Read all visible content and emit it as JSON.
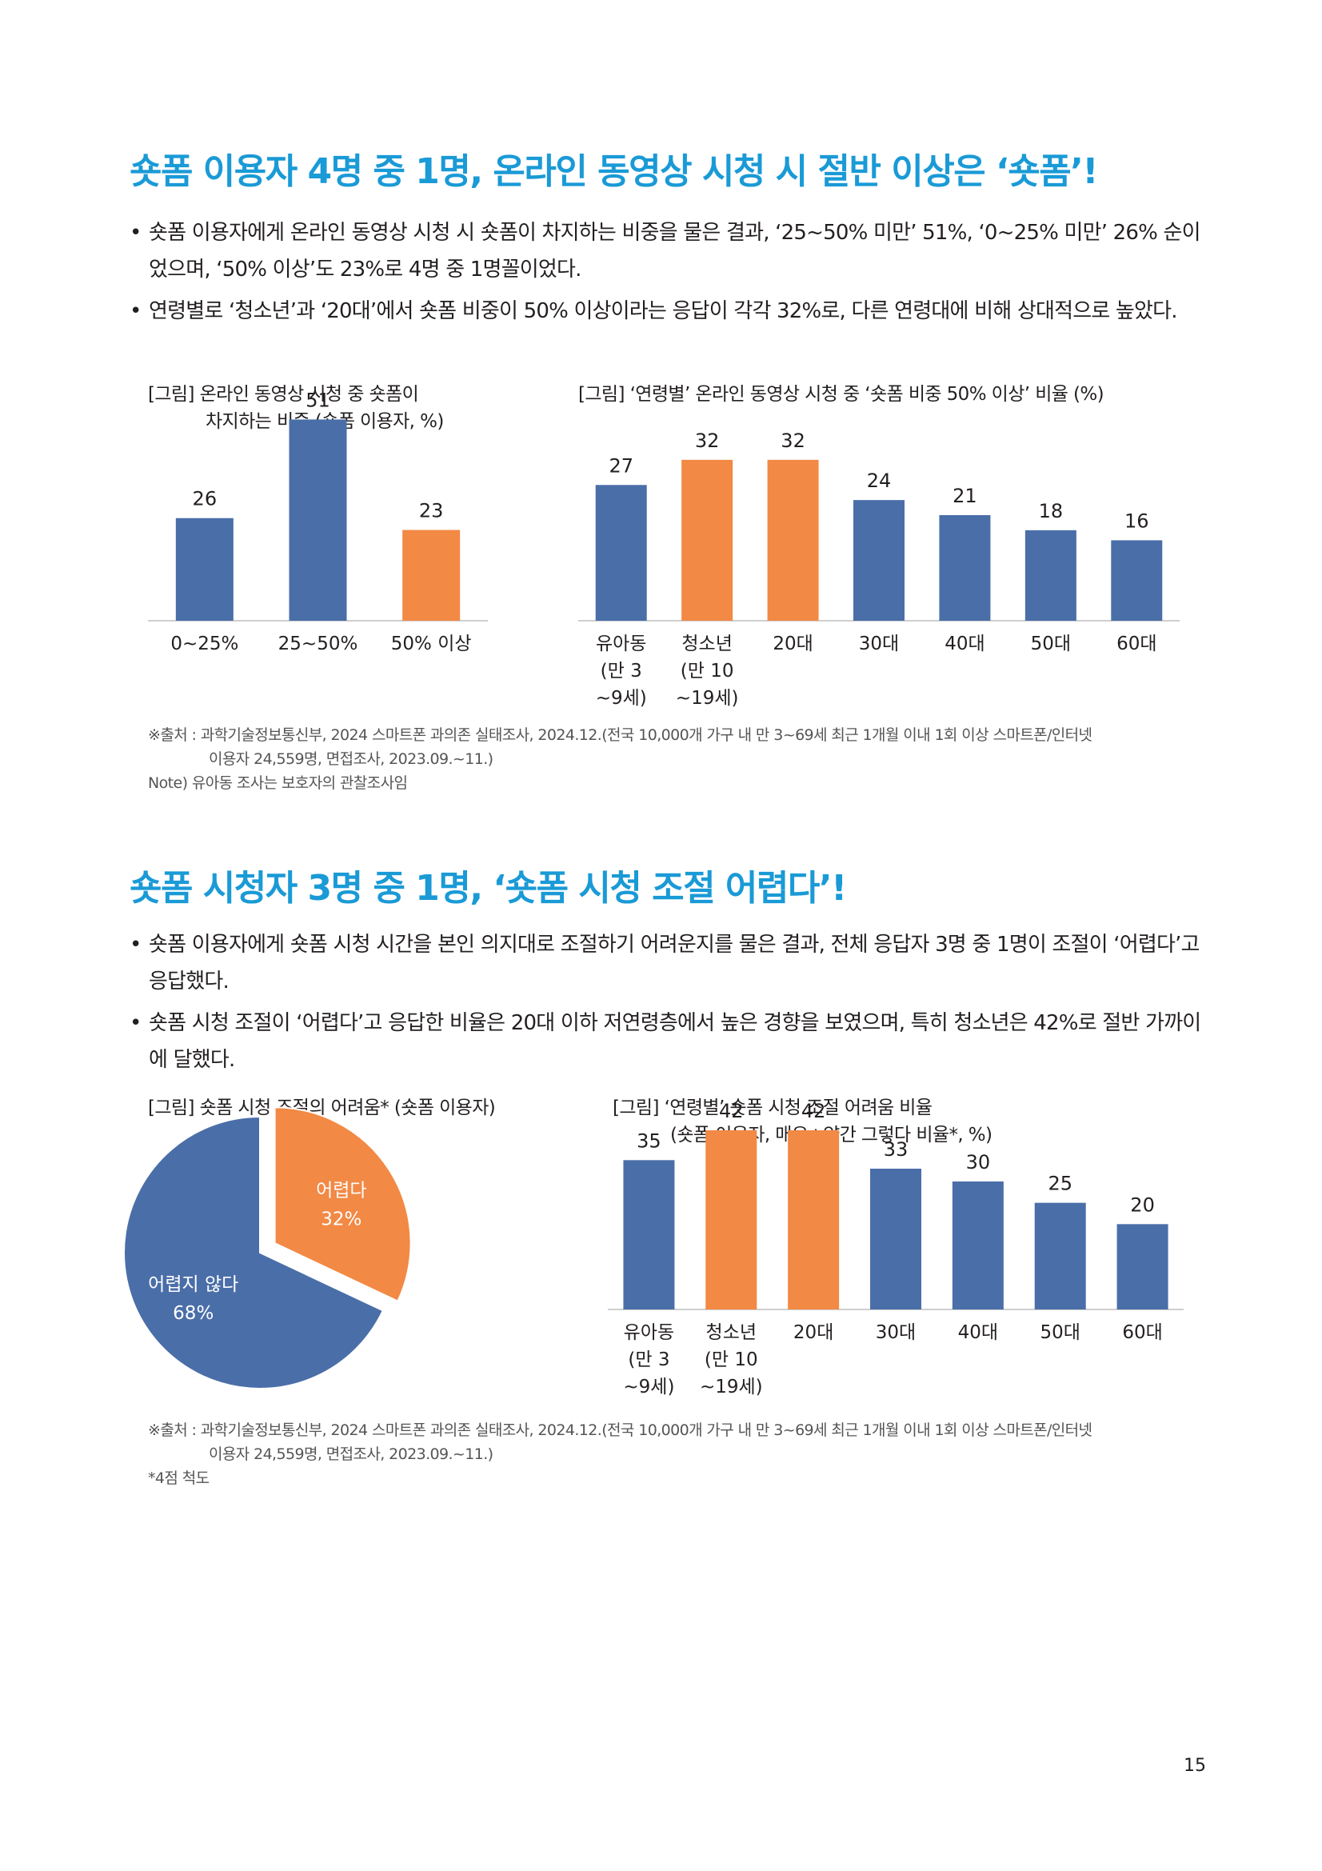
{
  "section1": {
    "heading": "숏폼 이용자 4명 중 1명, 온라인 동영상 시청 시 절반 이상은 ‘숏폼’!",
    "bullets": [
      "숏폼 이용자에게 온라인 동영상 시청 시 숏폼이 차지하는 비중을 물은 결과, ‘25~50% 미만’ 51%, ‘0~25% 미만’ 26% 순이었으며, ‘50% 이상’도 23%로 4명 중 1명꼴이었다.",
      "연령별로 ‘청소년’과 ‘20대’에서 숏폼 비중이 50% 이상이라는 응답이 각각 32%로, 다른 연령대에 비해 상대적으로 높았다."
    ],
    "chart1_caption_line1": "[그림] 온라인 동영상 시청 중 숏폼이",
    "chart1_caption_line2": "차지하는 비중 (숏폼 이용자, %)",
    "chart2_caption": "[그림] ‘연령별’ 온라인 동영상 시청 중 ‘숏폼 비중 50% 이상’ 비율 (%)",
    "source_line1": "※출처 : 과학기술정보통신부, 2024 스마트폰 과의존 실태조사, 2024.12.(전국 10,000개 가구 내 만 3~69세 최근 1개월 이내 1회 이상 스마트폰/인터넷",
    "source_line2": "이용자 24,559명, 면접조사, 2023.09.~11.)",
    "note": "Note) 유아동 조사는 보호자의 관찰조사임"
  },
  "section2": {
    "heading": "숏폼 시청자 3명 중 1명, ‘숏폼 시청 조절 어렵다’!",
    "bullets": [
      "숏폼 이용자에게 숏폼 시청 시간을 본인 의지대로 조절하기 어려운지를 물은 결과, 전체 응답자 3명 중 1명이 조절이 ‘어렵다’고 응답했다.",
      "숏폼 시청 조절이 ‘어렵다’고 응답한 비율은 20대 이하 저연령층에서 높은 경향을 보였으며, 특히 청소년은 42%로 절반 가까이에 달했다."
    ],
    "chart3_caption": "[그림] 숏폼 시청 조절의 어려움* (숏폼 이용자)",
    "chart4_caption_line1": "[그림] ‘연령별’ 숏폼 시청 조절 어려움 비율",
    "chart4_caption_line2": "(숏폼 이용자, 매우+약간 그렇다 비율*, %)",
    "source_line1": "※출처 : 과학기술정보통신부, 2024 스마트폰 과의존 실태조사, 2024.12.(전국 10,000개 가구 내 만 3~69세 최근 1개월 이내 1회 이상 스마트폰/인터넷",
    "source_line2": "이용자 24,559명, 면접조사, 2023.09.~11.)",
    "note": "*4점 척도"
  },
  "page_number": "15",
  "colors": {
    "blue": "#4a6ea8",
    "orange": "#f28945",
    "heading": "#1a9ad6",
    "axis": "#bfbfbf"
  },
  "chart_data": [
    {
      "type": "bar",
      "categories": [
        [
          "0~25%"
        ],
        [
          "25~50%"
        ],
        [
          "50% 이상"
        ]
      ],
      "values": [
        26,
        51,
        23
      ],
      "highlight": [
        false,
        false,
        true
      ],
      "ylim": [
        0,
        60
      ]
    },
    {
      "type": "bar",
      "categories": [
        [
          "유아동",
          "(만 3",
          "~9세)"
        ],
        [
          "청소년",
          "(만 10",
          "~19세)"
        ],
        [
          "20대"
        ],
        [
          "30대"
        ],
        [
          "40대"
        ],
        [
          "50대"
        ],
        [
          "60대"
        ]
      ],
      "values": [
        27,
        32,
        32,
        24,
        21,
        18,
        16
      ],
      "highlight": [
        false,
        true,
        true,
        false,
        false,
        false,
        false
      ],
      "ylim": [
        0,
        35
      ]
    },
    {
      "type": "pie",
      "slices": [
        {
          "label": "어렵다",
          "value": 32,
          "display": "32%",
          "exploded": true
        },
        {
          "label": "어렵지 않다",
          "value": 68,
          "display": "68%",
          "exploded": false
        }
      ]
    },
    {
      "type": "bar",
      "categories": [
        [
          "유아동",
          "(만 3",
          "~9세)"
        ],
        [
          "청소년",
          "(만 10",
          "~19세)"
        ],
        [
          "20대"
        ],
        [
          "30대"
        ],
        [
          "40대"
        ],
        [
          "50대"
        ],
        [
          "60대"
        ]
      ],
      "values": [
        35,
        42,
        42,
        33,
        30,
        25,
        20
      ],
      "highlight": [
        false,
        true,
        true,
        false,
        false,
        false,
        false
      ],
      "ylim": [
        0,
        45
      ]
    }
  ]
}
